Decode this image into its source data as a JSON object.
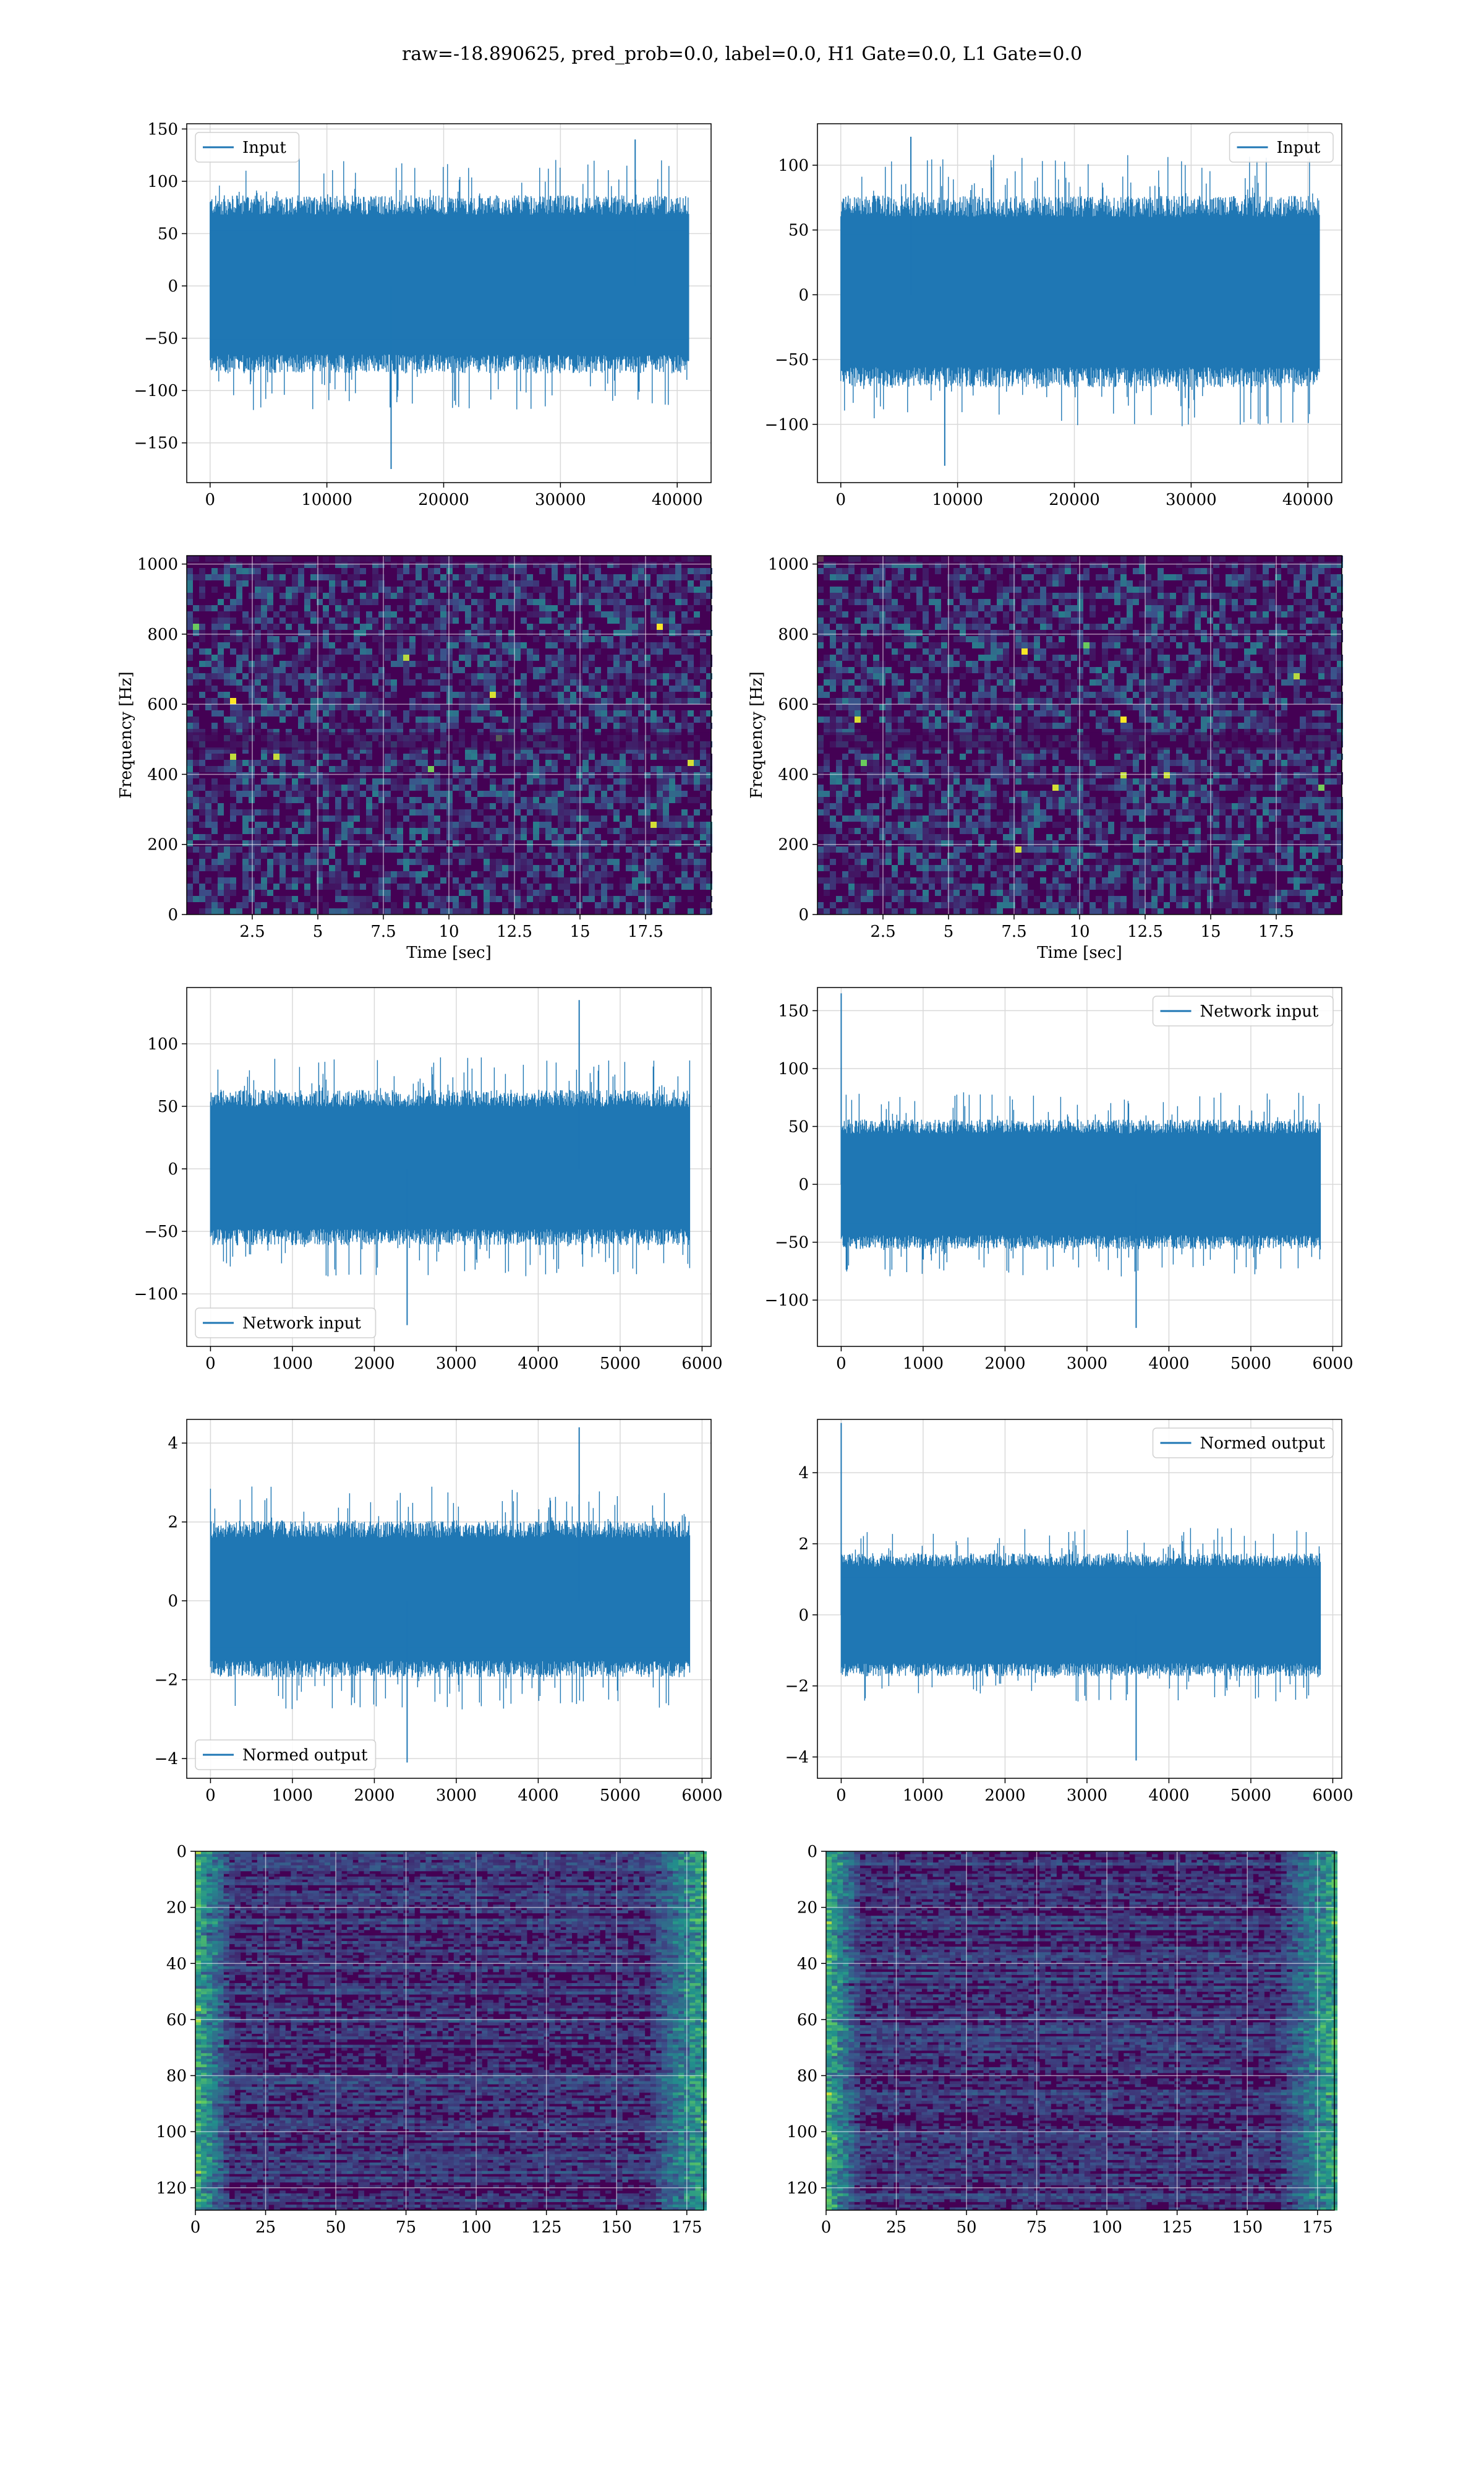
{
  "title": "raw=-18.890625, pred_prob=0.0, label=0.0, H1 Gate=0.0, L1 Gate=0.0",
  "colors": {
    "series": "#1f77b4",
    "grid": "#d9d9d9",
    "viridis_low": "#440154",
    "viridis_high": "#fde725"
  },
  "chart_data": [
    {
      "id": "input-h1",
      "type": "line",
      "title": "",
      "xlabel": "",
      "ylabel": "",
      "xlim": [
        -2000,
        42900
      ],
      "ylim": [
        -188,
        155
      ],
      "xticks": [
        0,
        10000,
        20000,
        30000,
        40000
      ],
      "yticks": [
        -150,
        -100,
        -50,
        0,
        50,
        100,
        150
      ],
      "grid": true,
      "legend": "top-left",
      "series": [
        {
          "name": "Input",
          "n": 40960,
          "band": [
            -82,
            85
          ],
          "peaks": [
            140,
            -175
          ],
          "peak_x": [
            36400,
            15500
          ]
        }
      ]
    },
    {
      "id": "input-l1",
      "type": "line",
      "title": "",
      "xlabel": "",
      "ylabel": "",
      "xlim": [
        -2000,
        42900
      ],
      "ylim": [
        -145,
        132
      ],
      "xticks": [
        0,
        10000,
        20000,
        30000,
        40000
      ],
      "yticks": [
        -100,
        -50,
        0,
        50,
        100
      ],
      "grid": true,
      "legend": "top-right",
      "series": [
        {
          "name": "Input",
          "n": 40960,
          "band": [
            -70,
            75
          ],
          "peaks": [
            122,
            -132
          ],
          "peak_x": [
            6000,
            8900
          ]
        }
      ]
    },
    {
      "id": "spec-h1",
      "type": "heatmap",
      "title": "",
      "xlabel": "Time [sec]",
      "ylabel": "Frequency [Hz]",
      "xlim": [
        0,
        20
      ],
      "ylim": [
        0,
        1024
      ],
      "xticks": [
        2.5,
        5.0,
        7.5,
        10.0,
        12.5,
        15.0,
        17.5
      ],
      "yticks": [
        0,
        200,
        400,
        600,
        800,
        1000
      ],
      "grid": true
    },
    {
      "id": "spec-l1",
      "type": "heatmap",
      "title": "",
      "xlabel": "Time [sec]",
      "ylabel": "Frequency [Hz]",
      "xlim": [
        0,
        20
      ],
      "ylim": [
        0,
        1024
      ],
      "xticks": [
        2.5,
        5.0,
        7.5,
        10.0,
        12.5,
        15.0,
        17.5
      ],
      "yticks": [
        0,
        200,
        400,
        600,
        800,
        1000
      ],
      "grid": true
    },
    {
      "id": "net-h1",
      "type": "line",
      "title": "",
      "xlabel": "",
      "ylabel": "",
      "xlim": [
        -290,
        6110
      ],
      "ylim": [
        -142,
        145
      ],
      "xticks": [
        0,
        1000,
        2000,
        3000,
        4000,
        5000,
        6000
      ],
      "yticks": [
        -100,
        -50,
        0,
        50,
        100
      ],
      "grid": true,
      "legend": "bottom-left",
      "series": [
        {
          "name": "Network input",
          "n": 5850,
          "band": [
            -60,
            62
          ],
          "peaks": [
            135,
            -125
          ],
          "peak_x": [
            4500,
            2400
          ]
        }
      ]
    },
    {
      "id": "net-l1",
      "type": "line",
      "title": "",
      "xlabel": "",
      "ylabel": "",
      "xlim": [
        -290,
        6110
      ],
      "ylim": [
        -140,
        170
      ],
      "xticks": [
        0,
        1000,
        2000,
        3000,
        4000,
        5000,
        6000
      ],
      "yticks": [
        -100,
        -50,
        0,
        50,
        100,
        150
      ],
      "grid": true,
      "legend": "top-right",
      "series": [
        {
          "name": "Network input",
          "n": 5850,
          "band": [
            -55,
            55
          ],
          "peaks": [
            165,
            -124
          ],
          "peak_x": [
            0,
            3600
          ]
        }
      ]
    },
    {
      "id": "norm-h1",
      "type": "line",
      "title": "",
      "xlabel": "",
      "ylabel": "",
      "xlim": [
        -290,
        6110
      ],
      "ylim": [
        -4.5,
        4.6
      ],
      "xticks": [
        0,
        1000,
        2000,
        3000,
        4000,
        5000,
        6000
      ],
      "yticks": [
        -4,
        -2,
        0,
        2,
        4
      ],
      "grid": true,
      "legend": "bottom-left",
      "series": [
        {
          "name": "Normed output",
          "n": 5850,
          "band": [
            -1.9,
            2.0
          ],
          "peaks": [
            4.4,
            -4.1
          ],
          "peak_x": [
            4500,
            2400
          ]
        }
      ]
    },
    {
      "id": "norm-l1",
      "type": "line",
      "title": "",
      "xlabel": "",
      "ylabel": "",
      "xlim": [
        -290,
        6110
      ],
      "ylim": [
        -4.6,
        5.5
      ],
      "xticks": [
        0,
        1000,
        2000,
        3000,
        4000,
        5000,
        6000
      ],
      "yticks": [
        -4,
        -2,
        0,
        2,
        4
      ],
      "grid": true,
      "legend": "top-right",
      "series": [
        {
          "name": "Normed output",
          "n": 5850,
          "band": [
            -1.7,
            1.7
          ],
          "peaks": [
            5.4,
            -4.1
          ],
          "peak_x": [
            0,
            3600
          ]
        }
      ]
    },
    {
      "id": "feat-h1",
      "type": "heatmap",
      "title": "",
      "xlabel": "",
      "ylabel": "",
      "xlim": [
        0,
        181
      ],
      "ylim": [
        128,
        0
      ],
      "xticks": [
        0,
        25,
        50,
        75,
        100,
        125,
        150,
        175
      ],
      "yticks": [
        0,
        20,
        40,
        60,
        80,
        100,
        120
      ],
      "grid": true
    },
    {
      "id": "feat-l1",
      "type": "heatmap",
      "title": "",
      "xlabel": "",
      "ylabel": "",
      "xlim": [
        0,
        181
      ],
      "ylim": [
        128,
        0
      ],
      "xticks": [
        0,
        25,
        50,
        75,
        100,
        125,
        150,
        175
      ],
      "yticks": [
        0,
        20,
        40,
        60,
        80,
        100,
        120
      ],
      "grid": true
    }
  ]
}
